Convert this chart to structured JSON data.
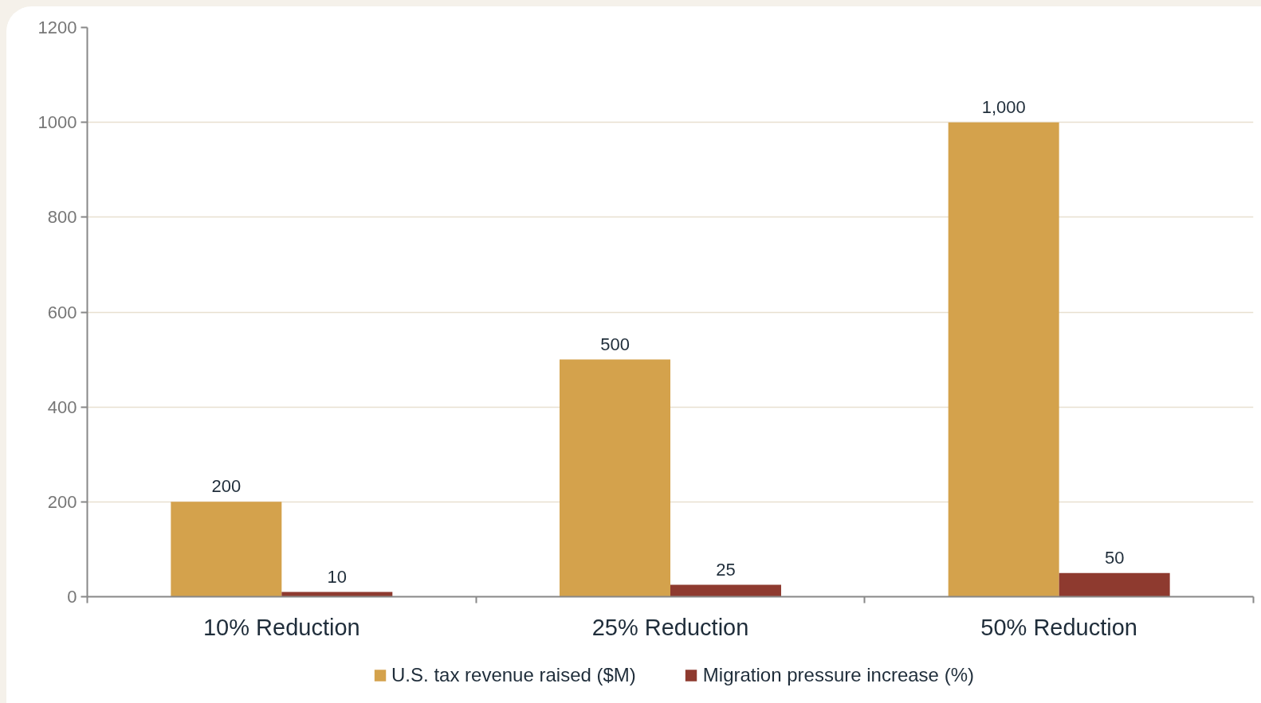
{
  "chart_data": {
    "type": "bar",
    "categories": [
      "10% Reduction",
      "25% Reduction",
      "50% Reduction"
    ],
    "series": [
      {
        "name": "U.S. tax revenue raised ($M)",
        "color": "#d4a24c",
        "values": [
          200,
          500,
          1000
        ],
        "value_labels": [
          "200",
          "500",
          "1,000"
        ]
      },
      {
        "name": "Migration pressure increase (%)",
        "color": "#8e3a2f",
        "values": [
          10,
          25,
          50
        ],
        "value_labels": [
          "10",
          "25",
          "50"
        ]
      }
    ],
    "ylim": [
      0,
      1200
    ],
    "yticks": [
      0,
      200,
      400,
      600,
      800,
      1000,
      1200
    ],
    "grid": "y",
    "legend": "bottom"
  }
}
